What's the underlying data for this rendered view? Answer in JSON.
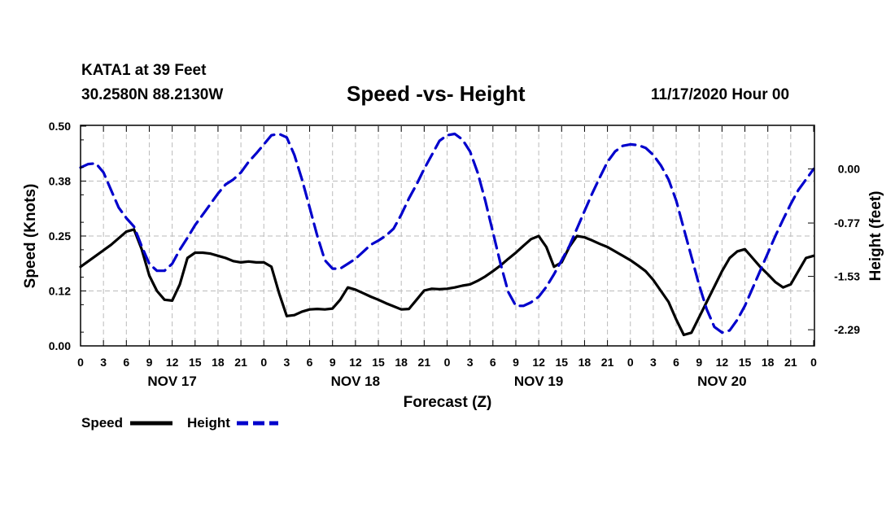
{
  "header": {
    "station": "KATA1 at 39 Feet",
    "coords": "30.2580N 88.2130W",
    "title": "Speed -vs- Height",
    "datestamp": "11/17/2020 Hour 00"
  },
  "legend": {
    "speed_label": "Speed",
    "height_label": "Height"
  },
  "colors": {
    "speed": "#000000",
    "height": "#0000cc",
    "grid": "#bbbbbb"
  },
  "chart_data": {
    "type": "line",
    "title": "Speed -vs- Height",
    "xlabel": "Forecast (Z)",
    "ylabel": "Speed (Knots)",
    "y2label": "Height (feet)",
    "xlim": [
      0,
      96
    ],
    "ylim": [
      0.0,
      0.5
    ],
    "y2lim": [
      -2.52,
      0.61
    ],
    "yticks": [
      "0.00",
      "0.12",
      "0.25",
      "0.38",
      "0.50"
    ],
    "y2ticks": [
      {
        "value": 0.0,
        "label": "0.00"
      },
      {
        "value": -0.77,
        "label": "-0.77"
      },
      {
        "value": -1.53,
        "label": "-1.53"
      },
      {
        "value": -2.29,
        "label": "-2.29"
      }
    ],
    "xtick_hours": [
      0,
      3,
      6,
      9,
      12,
      15,
      18,
      21,
      24,
      27,
      30,
      33,
      36,
      39,
      42,
      45,
      48,
      51,
      54,
      57,
      60,
      63,
      66,
      69,
      72,
      75,
      78,
      81,
      84,
      87,
      90,
      93,
      96
    ],
    "xtick_labels": [
      "0",
      "3",
      "6",
      "9",
      "12",
      "15",
      "18",
      "21",
      "0",
      "3",
      "6",
      "9",
      "12",
      "15",
      "18",
      "21",
      "0",
      "3",
      "6",
      "9",
      "12",
      "15",
      "18",
      "21",
      "0",
      "3",
      "6",
      "9",
      "12",
      "15",
      "18",
      "21",
      "0"
    ],
    "day_labels": [
      {
        "hour": 12,
        "label": "NOV 17"
      },
      {
        "hour": 36,
        "label": "NOV 18"
      },
      {
        "hour": 60,
        "label": "NOV 19"
      },
      {
        "hour": 84,
        "label": "NOV 20"
      }
    ],
    "grid": true,
    "series": [
      {
        "name": "Speed",
        "axis": "left",
        "style": "solid",
        "x": [
          0,
          2,
          4,
          6,
          7,
          8,
          9,
          10,
          11,
          12,
          13,
          14,
          15,
          16,
          17,
          18,
          19,
          20,
          21,
          22,
          23,
          24,
          25,
          26,
          27,
          28,
          29,
          30,
          31,
          32,
          33,
          34,
          35,
          36,
          37,
          38,
          39,
          40,
          41,
          42,
          43,
          44,
          45,
          46,
          47,
          48,
          49,
          50,
          51,
          52,
          53,
          54,
          55,
          56,
          57,
          58,
          59,
          60,
          61,
          62,
          63,
          64,
          65,
          66,
          67,
          68,
          69,
          70,
          71,
          72,
          73,
          74,
          75,
          76,
          77,
          78,
          79,
          80,
          81,
          82,
          83,
          84,
          85,
          86,
          87,
          88,
          89,
          90,
          91,
          92,
          93,
          94,
          95,
          96
        ],
        "values": [
          0.18,
          0.205,
          0.23,
          0.26,
          0.265,
          0.22,
          0.16,
          0.125,
          0.105,
          0.103,
          0.14,
          0.2,
          0.212,
          0.212,
          0.21,
          0.205,
          0.2,
          0.193,
          0.19,
          0.192,
          0.19,
          0.19,
          0.18,
          0.12,
          0.068,
          0.07,
          0.078,
          0.083,
          0.084,
          0.083,
          0.085,
          0.105,
          0.133,
          0.128,
          0.12,
          0.112,
          0.105,
          0.097,
          0.09,
          0.083,
          0.084,
          0.105,
          0.126,
          0.13,
          0.129,
          0.13,
          0.133,
          0.137,
          0.14,
          0.148,
          0.158,
          0.17,
          0.183,
          0.198,
          0.212,
          0.228,
          0.243,
          0.25,
          0.225,
          0.18,
          0.19,
          0.225,
          0.25,
          0.247,
          0.24,
          0.232,
          0.225,
          0.215,
          0.205,
          0.195,
          0.183,
          0.17,
          0.15,
          0.125,
          0.1,
          0.06,
          0.025,
          0.03,
          0.065,
          0.1,
          0.135,
          0.17,
          0.2,
          0.215,
          0.22,
          0.2,
          0.18,
          0.163,
          0.145,
          0.133,
          0.14,
          0.17,
          0.2,
          0.205
        ]
      },
      {
        "name": "Height",
        "axis": "right",
        "style": "dashed",
        "x": [
          0,
          1,
          2,
          3,
          4,
          5,
          6,
          7,
          8,
          9,
          10,
          11,
          12,
          13,
          14,
          15,
          16,
          17,
          18,
          19,
          20,
          21,
          22,
          23,
          24,
          25,
          26,
          27,
          28,
          29,
          30,
          31,
          32,
          33,
          34,
          35,
          36,
          37,
          38,
          39,
          40,
          41,
          42,
          43,
          44,
          45,
          46,
          47,
          48,
          49,
          50,
          51,
          52,
          53,
          54,
          55,
          56,
          57,
          58,
          59,
          60,
          61,
          62,
          63,
          64,
          65,
          66,
          67,
          68,
          69,
          70,
          71,
          72,
          73,
          74,
          75,
          76,
          77,
          78,
          79,
          80,
          81,
          82,
          83,
          84,
          85,
          86,
          87,
          88,
          89,
          90,
          91,
          92,
          93,
          94,
          95,
          96
        ],
        "values": [
          0.02,
          0.07,
          0.08,
          -0.05,
          -0.3,
          -0.55,
          -0.7,
          -0.82,
          -1.1,
          -1.35,
          -1.45,
          -1.45,
          -1.35,
          -1.15,
          -0.98,
          -0.8,
          -0.65,
          -0.5,
          -0.35,
          -0.22,
          -0.15,
          -0.05,
          0.1,
          0.22,
          0.35,
          0.48,
          0.5,
          0.45,
          0.2,
          -0.15,
          -0.55,
          -0.95,
          -1.3,
          -1.42,
          -1.42,
          -1.35,
          -1.28,
          -1.18,
          -1.08,
          -1.02,
          -0.95,
          -0.85,
          -0.65,
          -0.42,
          -0.22,
          0.0,
          0.2,
          0.4,
          0.48,
          0.5,
          0.42,
          0.25,
          -0.05,
          -0.45,
          -0.9,
          -1.35,
          -1.75,
          -1.95,
          -1.95,
          -1.9,
          -1.82,
          -1.68,
          -1.5,
          -1.3,
          -1.1,
          -0.85,
          -0.6,
          -0.35,
          -0.12,
          0.1,
          0.25,
          0.33,
          0.35,
          0.34,
          0.3,
          0.2,
          0.05,
          -0.15,
          -0.45,
          -0.85,
          -1.25,
          -1.65,
          -2.0,
          -2.25,
          -2.33,
          -2.3,
          -2.15,
          -1.95,
          -1.7,
          -1.45,
          -1.2,
          -0.95,
          -0.72,
          -0.5,
          -0.3,
          -0.15,
          0.0
        ]
      }
    ]
  }
}
